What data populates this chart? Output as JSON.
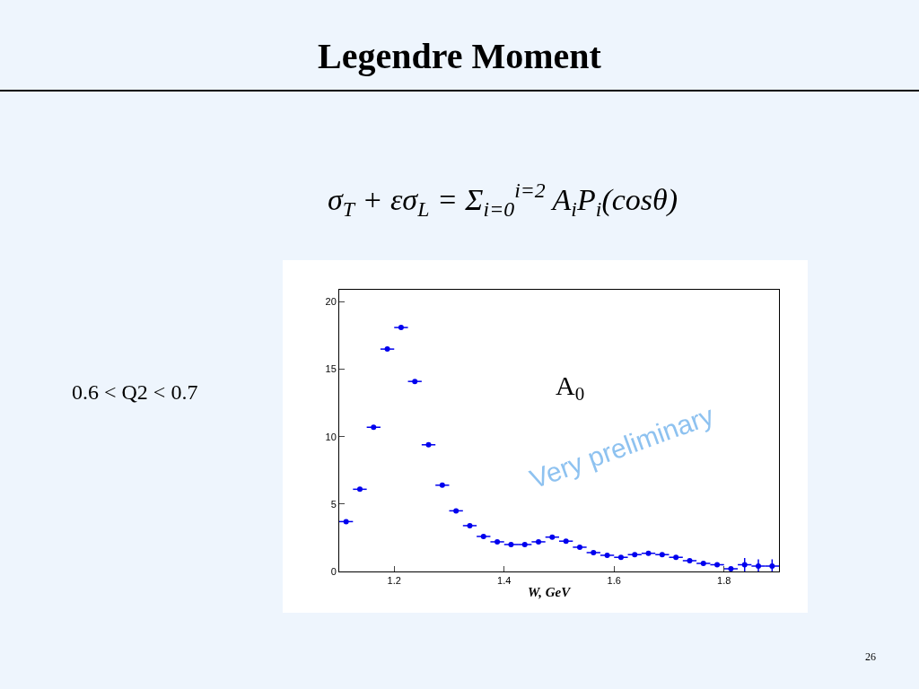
{
  "chart_data": {
    "type": "scatter",
    "title": "Legendre Moment",
    "subtitle": "σ$_{T}$ + εσ$_{L}$ = Σ$_{i=0}$$^{i=2}$ A$_{i}$P$_{i}$(cosθ)",
    "xlabel": "W, GeV",
    "annotations": [
      "0.6 < Q2 < 0.7",
      "A$_{0}$",
      "Very preliminary",
      "26"
    ],
    "x": [
      1.1125,
      1.1375,
      1.1625,
      1.1875,
      1.2125,
      1.2375,
      1.2625,
      1.2875,
      1.3125,
      1.3375,
      1.3625,
      1.3875,
      1.4125,
      1.4375,
      1.4625,
      1.4875,
      1.5125,
      1.5375,
      1.5625,
      1.5875,
      1.6125,
      1.6375,
      1.6625,
      1.6875,
      1.7125,
      1.7375,
      1.7625,
      1.7875,
      1.8125,
      1.8375,
      1.8625,
      1.8875
    ],
    "series": [
      {
        "color": "#0000ee",
        "values": [
          3.7,
          6.1,
          10.7,
          16.5,
          18.1,
          14.1,
          9.4,
          6.4,
          4.5,
          3.4,
          2.6,
          2.2,
          2.0,
          2.0,
          2.2,
          2.55,
          2.25,
          1.8,
          1.4,
          1.2,
          1.05,
          1.25,
          1.35,
          1.25,
          1.05,
          0.8,
          0.6,
          0.5,
          0.2,
          0.5,
          0.4,
          0.4
        ],
        "xerrors": [
          0.0125,
          0.0125,
          0.0125,
          0.0125,
          0.0125,
          0.0125,
          0.0125,
          0.0125,
          0.0125,
          0.0125,
          0.0125,
          0.0125,
          0.0125,
          0.0125,
          0.0125,
          0.0125,
          0.0125,
          0.0125,
          0.0125,
          0.0125,
          0.0125,
          0.0125,
          0.0125,
          0.0125,
          0.0125,
          0.0125,
          0.0125,
          0.0125,
          0.0125,
          0.0125,
          0.0125,
          0.0125
        ],
        "errors": [
          null,
          null,
          null,
          null,
          null,
          null,
          null,
          null,
          null,
          null,
          null,
          null,
          null,
          null,
          null,
          null,
          null,
          null,
          null,
          null,
          null,
          null,
          null,
          null,
          null,
          null,
          null,
          null,
          null,
          0.5,
          0.5,
          0.5
        ]
      }
    ],
    "xlim": [
      1.1,
      1.9
    ],
    "ylim": [
      0,
      20.9
    ],
    "xticks": [
      1.2,
      1.4,
      1.6,
      1.8
    ],
    "yticks": [
      0,
      5,
      10,
      15,
      20
    ],
    "marker": "circle"
  }
}
